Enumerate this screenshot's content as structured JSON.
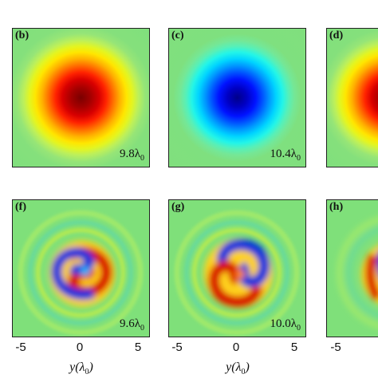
{
  "figure": {
    "panels": [
      {
        "id": "b",
        "label": "(b)",
        "scale": "9.8λ",
        "scale_sub": "0",
        "kind": "red-spot"
      },
      {
        "id": "c",
        "label": "(c)",
        "scale": "10.4λ",
        "scale_sub": "0",
        "kind": "blue-spot"
      },
      {
        "id": "d",
        "label": "(d)",
        "scale": "",
        "scale_sub": "",
        "kind": "red-spot-cropped"
      },
      {
        "id": "f",
        "label": "(f)",
        "scale": "9.6λ",
        "scale_sub": "0",
        "kind": "spiral"
      },
      {
        "id": "g",
        "label": "(g)",
        "scale": "10.0λ",
        "scale_sub": "0",
        "kind": "spiral"
      },
      {
        "id": "h",
        "label": "(h)",
        "scale": "",
        "scale_sub": "",
        "kind": "spiral-cropped"
      }
    ],
    "x_ticks": [
      "-5",
      "0",
      "5"
    ],
    "x_axis_label": {
      "var": "y(λ",
      "sub": "0",
      "close": ")"
    }
  }
}
